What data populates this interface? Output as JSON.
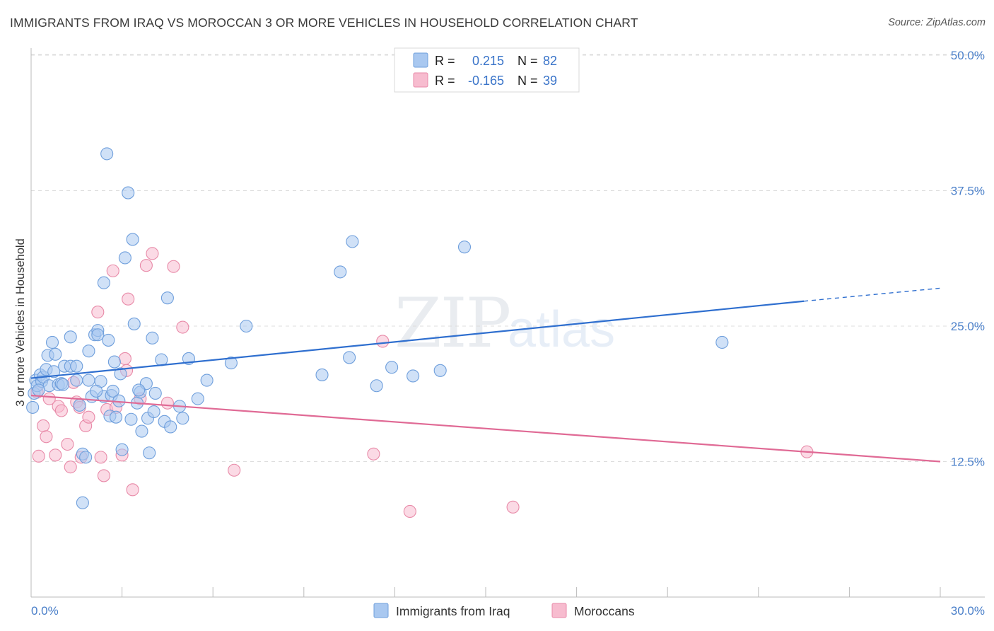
{
  "title": "IMMIGRANTS FROM IRAQ VS MOROCCAN 3 OR MORE VEHICLES IN HOUSEHOLD CORRELATION CHART",
  "source": "Source: ZipAtlas.com",
  "watermark": "ZIPatlas",
  "chart_data": {
    "type": "scatter",
    "title": "IMMIGRANTS FROM IRAQ VS MOROCCAN 3 OR MORE VEHICLES IN HOUSEHOLD CORRELATION CHART",
    "xlabel": "",
    "ylabel": "3 or more Vehicles in Household",
    "xlim": [
      0,
      30
    ],
    "ylim": [
      0,
      50
    ],
    "x_tick_labels": [
      "0.0%",
      "30.0%"
    ],
    "y_ticks": [
      12.5,
      25.0,
      37.5,
      50.0
    ],
    "y_tick_labels": [
      "12.5%",
      "25.0%",
      "37.5%",
      "50.0%"
    ],
    "grid": true,
    "legend_position": "top-center",
    "stats": [
      {
        "r_label": "R =",
        "r_value": "0.215",
        "n_label": "N =",
        "n_value": "82"
      },
      {
        "r_label": "R =",
        "r_value": "-0.165",
        "n_label": "N =",
        "n_value": "39"
      }
    ],
    "series": [
      {
        "name": "Immigrants from Iraq",
        "color": "#a9c8f0",
        "edge": "#6f9fdc",
        "line_color": "#2f6fcf",
        "trend": {
          "x0": 0,
          "y0": 20.2,
          "x1": 25.5,
          "y1": 27.3,
          "x_dash_end": 30,
          "y_dash_end": 28.5
        },
        "points": [
          [
            0.1,
            18.8
          ],
          [
            0.15,
            20.0
          ],
          [
            0.2,
            19.5
          ],
          [
            0.3,
            20.5
          ],
          [
            0.35,
            19.9
          ],
          [
            0.4,
            20.3
          ],
          [
            0.5,
            21.0
          ],
          [
            0.55,
            22.3
          ],
          [
            0.6,
            19.5
          ],
          [
            0.7,
            23.5
          ],
          [
            0.75,
            20.8
          ],
          [
            0.8,
            22.4
          ],
          [
            0.9,
            19.6
          ],
          [
            1.0,
            19.7
          ],
          [
            1.1,
            21.3
          ],
          [
            1.3,
            21.3
          ],
          [
            1.3,
            24.0
          ],
          [
            1.5,
            21.3
          ],
          [
            1.5,
            20.0
          ],
          [
            1.6,
            17.7
          ],
          [
            1.7,
            13.2
          ],
          [
            1.7,
            8.7
          ],
          [
            1.8,
            12.9
          ],
          [
            1.9,
            20.0
          ],
          [
            1.9,
            22.7
          ],
          [
            2.0,
            18.5
          ],
          [
            2.1,
            24.2
          ],
          [
            2.2,
            24.6
          ],
          [
            2.2,
            24.2
          ],
          [
            2.3,
            19.9
          ],
          [
            2.4,
            29.0
          ],
          [
            2.4,
            18.5
          ],
          [
            2.5,
            40.9
          ],
          [
            2.55,
            23.7
          ],
          [
            2.6,
            16.7
          ],
          [
            2.65,
            18.6
          ],
          [
            2.7,
            19.0
          ],
          [
            2.75,
            21.7
          ],
          [
            2.8,
            16.6
          ],
          [
            2.9,
            18.1
          ],
          [
            2.95,
            20.6
          ],
          [
            3.0,
            13.6
          ],
          [
            3.1,
            31.3
          ],
          [
            3.2,
            37.3
          ],
          [
            3.3,
            16.4
          ],
          [
            3.35,
            33.0
          ],
          [
            3.4,
            25.2
          ],
          [
            3.5,
            17.9
          ],
          [
            3.6,
            18.9
          ],
          [
            3.65,
            15.3
          ],
          [
            3.8,
            19.7
          ],
          [
            3.85,
            16.5
          ],
          [
            3.9,
            13.3
          ],
          [
            4.0,
            23.9
          ],
          [
            4.05,
            17.1
          ],
          [
            4.1,
            18.8
          ],
          [
            4.3,
            21.9
          ],
          [
            4.4,
            16.2
          ],
          [
            4.5,
            27.6
          ],
          [
            4.6,
            15.7
          ],
          [
            4.9,
            17.6
          ],
          [
            5.0,
            16.5
          ],
          [
            5.2,
            22.0
          ],
          [
            5.5,
            18.3
          ],
          [
            5.8,
            20.0
          ],
          [
            6.6,
            21.6
          ],
          [
            7.1,
            25.0
          ],
          [
            9.6,
            20.5
          ],
          [
            10.2,
            30.0
          ],
          [
            10.5,
            22.1
          ],
          [
            10.6,
            32.8
          ],
          [
            11.4,
            19.5
          ],
          [
            11.9,
            21.2
          ],
          [
            12.6,
            20.4
          ],
          [
            13.5,
            20.9
          ],
          [
            14.3,
            32.3
          ],
          [
            22.8,
            23.5
          ],
          [
            0.05,
            17.5
          ],
          [
            0.25,
            19.1
          ],
          [
            1.05,
            19.6
          ],
          [
            2.15,
            19.0
          ],
          [
            3.55,
            19.1
          ]
        ]
      },
      {
        "name": "Moroccans",
        "color": "#f7bccf",
        "edge": "#e88aa8",
        "line_color": "#e06a95",
        "trend": {
          "x0": 0,
          "y0": 18.6,
          "x1": 30,
          "y1": 12.5
        },
        "points": [
          [
            0.2,
            18.9
          ],
          [
            0.25,
            13.0
          ],
          [
            0.4,
            15.8
          ],
          [
            0.5,
            14.8
          ],
          [
            0.6,
            18.3
          ],
          [
            0.8,
            13.1
          ],
          [
            0.9,
            17.6
          ],
          [
            1.0,
            17.2
          ],
          [
            1.2,
            14.1
          ],
          [
            1.3,
            12.0
          ],
          [
            1.4,
            19.8
          ],
          [
            1.5,
            18.0
          ],
          [
            1.6,
            17.5
          ],
          [
            1.65,
            12.9
          ],
          [
            1.8,
            15.8
          ],
          [
            1.9,
            16.6
          ],
          [
            2.2,
            26.3
          ],
          [
            2.3,
            12.9
          ],
          [
            2.4,
            11.2
          ],
          [
            2.5,
            17.3
          ],
          [
            2.7,
            30.1
          ],
          [
            2.8,
            17.5
          ],
          [
            3.0,
            13.1
          ],
          [
            3.1,
            22.0
          ],
          [
            3.15,
            20.9
          ],
          [
            3.2,
            27.5
          ],
          [
            3.35,
            9.9
          ],
          [
            3.6,
            18.3
          ],
          [
            3.8,
            30.6
          ],
          [
            4.0,
            31.7
          ],
          [
            4.5,
            17.9
          ],
          [
            4.7,
            30.5
          ],
          [
            5.0,
            24.9
          ],
          [
            6.7,
            11.7
          ],
          [
            11.3,
            13.2
          ],
          [
            11.6,
            23.6
          ],
          [
            12.5,
            7.9
          ],
          [
            15.9,
            8.3
          ],
          [
            25.6,
            13.4
          ]
        ]
      }
    ]
  }
}
